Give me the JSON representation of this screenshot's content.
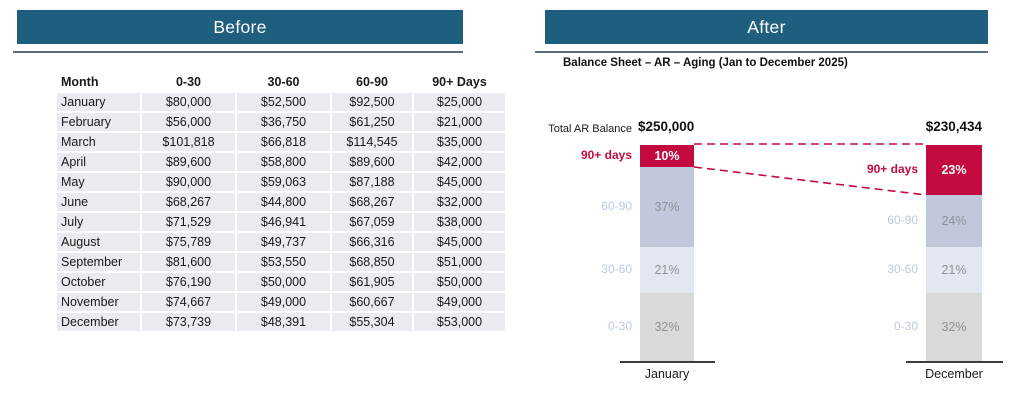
{
  "panels": {
    "before": {
      "title": "Before"
    },
    "after": {
      "title": "After",
      "subtitle": "Balance Sheet – AR – Aging (Jan to December 2025)"
    }
  },
  "table": {
    "headers": [
      "Month",
      "0-30",
      "30-60",
      "60-90",
      "90+ Days"
    ],
    "rows": [
      [
        "January",
        "$80,000",
        "$52,500",
        "$92,500",
        "$25,000"
      ],
      [
        "February",
        "$56,000",
        "$36,750",
        "$61,250",
        "$21,000"
      ],
      [
        "March",
        "$101,818",
        "$66,818",
        "$114,545",
        "$35,000"
      ],
      [
        "April",
        "$89,600",
        "$58,800",
        "$89,600",
        "$42,000"
      ],
      [
        "May",
        "$90,000",
        "$59,063",
        "$87,188",
        "$45,000"
      ],
      [
        "June",
        "$68,267",
        "$44,800",
        "$68,267",
        "$32,000"
      ],
      [
        "July",
        "$71,529",
        "$46,941",
        "$67,059",
        "$38,000"
      ],
      [
        "August",
        "$75,789",
        "$49,737",
        "$66,316",
        "$45,000"
      ],
      [
        "September",
        "$81,600",
        "$53,550",
        "$68,850",
        "$51,000"
      ],
      [
        "October",
        "$76,190",
        "$50,000",
        "$61,905",
        "$50,000"
      ],
      [
        "November",
        "$74,667",
        "$49,000",
        "$60,667",
        "$49,000"
      ],
      [
        "December",
        "$73,739",
        "$48,391",
        "$55,304",
        "$53,000"
      ]
    ]
  },
  "chart": {
    "total_label": "Total AR Balance",
    "bars": [
      {
        "month": "January",
        "total": "$250,000",
        "segments": [
          {
            "label": "90+ days",
            "pct": "10%",
            "value": 10
          },
          {
            "label": "60-90",
            "pct": "37%",
            "value": 37
          },
          {
            "label": "30-60",
            "pct": "21%",
            "value": 21
          },
          {
            "label": "0-30",
            "pct": "32%",
            "value": 32
          }
        ]
      },
      {
        "month": "December",
        "total": "$230,434",
        "segments": [
          {
            "label": "90+ days",
            "pct": "23%",
            "value": 23
          },
          {
            "label": "60-90",
            "pct": "24%",
            "value": 24
          },
          {
            "label": "30-60",
            "pct": "21%",
            "value": 21
          },
          {
            "label": "0-30",
            "pct": "32%",
            "value": 32
          }
        ]
      }
    ]
  },
  "colors": {
    "banner": "#1E5E7E",
    "rule": "#5C6F80",
    "cell_bg": "#EAEAF0",
    "red": "#C30B3F",
    "seg_60_90": "#BFC9DB",
    "seg_30_60": "#E2E7F0",
    "seg_0_30": "#D9D9D9",
    "bucket_label_blue": "#BCC9E3",
    "pct_gray": "#8E9196"
  },
  "chart_data": [
    {
      "type": "table",
      "title": "Before",
      "columns": [
        "Month",
        "0-30",
        "30-60",
        "60-90",
        "90+ Days"
      ],
      "rows": [
        [
          "January",
          "$80,000",
          "$52,500",
          "$92,500",
          "$25,000"
        ],
        [
          "February",
          "$56,000",
          "$36,750",
          "$61,250",
          "$21,000"
        ],
        [
          "March",
          "$101,818",
          "$66,818",
          "$114,545",
          "$35,000"
        ],
        [
          "April",
          "$89,600",
          "$58,800",
          "$89,600",
          "$42,000"
        ],
        [
          "May",
          "$90,000",
          "$59,063",
          "$87,188",
          "$45,000"
        ],
        [
          "June",
          "$68,267",
          "$44,800",
          "$68,267",
          "$32,000"
        ],
        [
          "July",
          "$71,529",
          "$46,941",
          "$67,059",
          "$38,000"
        ],
        [
          "August",
          "$75,789",
          "$49,737",
          "$66,316",
          "$45,000"
        ],
        [
          "September",
          "$81,600",
          "$53,550",
          "$68,850",
          "$51,000"
        ],
        [
          "October",
          "$76,190",
          "$50,000",
          "$61,905",
          "$50,000"
        ],
        [
          "November",
          "$74,667",
          "$49,000",
          "$60,667",
          "$49,000"
        ],
        [
          "December",
          "$73,739",
          "$48,391",
          "$55,304",
          "$53,000"
        ]
      ]
    },
    {
      "type": "bar",
      "stacked": true,
      "units": "percent of total AR",
      "title": "Balance Sheet – AR – Aging (Jan to December 2025)",
      "categories": [
        "January",
        "December"
      ],
      "series": [
        {
          "name": "90+ days",
          "values": [
            10,
            23
          ]
        },
        {
          "name": "60-90",
          "values": [
            37,
            24
          ]
        },
        {
          "name": "30-60",
          "values": [
            21,
            21
          ]
        },
        {
          "name": "0-30",
          "values": [
            32,
            32
          ]
        }
      ],
      "total_label": "Total AR Balance",
      "totals": [
        "$250,000",
        "$230,434"
      ],
      "ylim": [
        0,
        100
      ],
      "legend_position": "labels left of each bar",
      "annotation": "dashed red lines link the 90+ days segment from January to December"
    }
  ]
}
